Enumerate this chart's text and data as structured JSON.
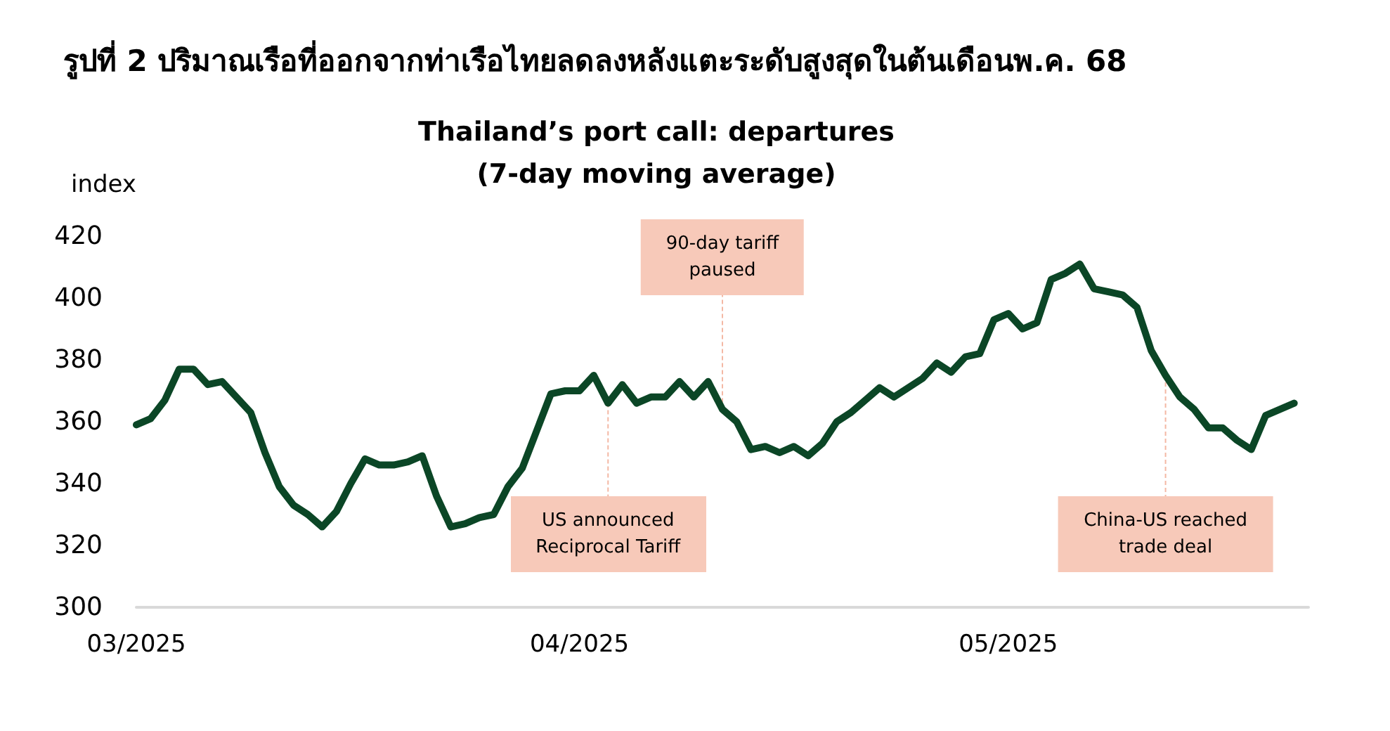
{
  "chart_data": {
    "type": "line",
    "title": "รูปที่ 2 ปริมาณเรือที่ออกจากท่าเรือไทยลดลงหลังแตะระดับสูงสุดในต้นเดือนพ.ค. 68",
    "subtitle": "Thailand’s port call: departures\n(7-day moving average)",
    "ylabel": "index",
    "x": [
      "2025-03-01",
      "2025-03-02",
      "2025-03-03",
      "2025-03-04",
      "2025-03-05",
      "2025-03-06",
      "2025-03-07",
      "2025-03-08",
      "2025-03-09",
      "2025-03-10",
      "2025-03-11",
      "2025-03-12",
      "2025-03-13",
      "2025-03-14",
      "2025-03-15",
      "2025-03-16",
      "2025-03-17",
      "2025-03-18",
      "2025-03-19",
      "2025-03-20",
      "2025-03-21",
      "2025-03-22",
      "2025-03-23",
      "2025-03-24",
      "2025-03-25",
      "2025-03-26",
      "2025-03-27",
      "2025-03-28",
      "2025-03-29",
      "2025-03-30",
      "2025-03-31",
      "2025-04-01",
      "2025-04-02",
      "2025-04-03",
      "2025-04-04",
      "2025-04-05",
      "2025-04-06",
      "2025-04-07",
      "2025-04-08",
      "2025-04-09",
      "2025-04-10",
      "2025-04-11",
      "2025-04-12",
      "2025-04-13",
      "2025-04-14",
      "2025-04-15",
      "2025-04-16",
      "2025-04-17",
      "2025-04-18",
      "2025-04-19",
      "2025-04-20",
      "2025-04-21",
      "2025-04-22",
      "2025-04-23",
      "2025-04-24",
      "2025-04-25",
      "2025-04-26",
      "2025-04-27",
      "2025-04-28",
      "2025-04-29",
      "2025-04-30",
      "2025-05-01",
      "2025-05-02",
      "2025-05-03",
      "2025-05-04",
      "2025-05-05",
      "2025-05-06",
      "2025-05-07",
      "2025-05-08",
      "2025-05-09",
      "2025-05-10",
      "2025-05-11",
      "2025-05-12",
      "2025-05-13",
      "2025-05-14",
      "2025-05-15",
      "2025-05-16",
      "2025-05-17",
      "2025-05-18",
      "2025-05-19",
      "2025-05-20",
      "2025-05-21"
    ],
    "series": [
      {
        "color": "#0b4626",
        "values": [
          359,
          361,
          367,
          377,
          377,
          372,
          373,
          368,
          363,
          350,
          339,
          333,
          330,
          326,
          331,
          340,
          348,
          346,
          346,
          347,
          349,
          336,
          326,
          327,
          329,
          330,
          339,
          345,
          357,
          369,
          370,
          370,
          375,
          366,
          372,
          366,
          368,
          368,
          373,
          368,
          373,
          364,
          360,
          351,
          352,
          350,
          352,
          349,
          353,
          360,
          363,
          367,
          371,
          368,
          371,
          374,
          379,
          376,
          381,
          382,
          393,
          395,
          390,
          392,
          406,
          408,
          411,
          403,
          402,
          401,
          397,
          383,
          375,
          368,
          364,
          358,
          358,
          354,
          351,
          362,
          364,
          366
        ]
      }
    ],
    "xlim": [
      "2025-03-01",
      "2025-05-22"
    ],
    "xticks": [
      {
        "value": "2025-03-01",
        "label": "03/2025"
      },
      {
        "value": "2025-04-01",
        "label": "04/2025"
      },
      {
        "value": "2025-05-01",
        "label": "05/2025"
      }
    ],
    "ylim": [
      300,
      420
    ],
    "yticks": [
      300,
      320,
      340,
      360,
      380,
      400,
      420
    ],
    "grid": false,
    "marker": "none",
    "line_style": "solid",
    "annotations": [
      {
        "text": "US announced\nReciprocal Tariff",
        "x": "2025-04-03",
        "y": 366
      },
      {
        "text": "90-day tariff\npaused",
        "x": "2025-04-11",
        "y": 364
      },
      {
        "text": "China-US reached\ntrade deal",
        "x": "2025-05-12",
        "y": 375
      }
    ]
  }
}
